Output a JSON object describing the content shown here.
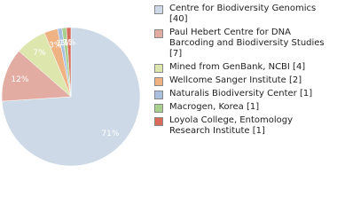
{
  "chart_data": {
    "type": "pie",
    "labels": [
      "Centre for Biodiversity Genomics [40]",
      "Paul Hebert Centre for DNA Barcoding and Biodiversity Studies [7]",
      "Mined from GenBank, NCBI [4]",
      "Wellcome Sanger Institute [2]",
      "Naturalis Biodiversity Center [1]",
      "Macrogen, Korea [1]",
      "Loyola College, Entomology Research Institute [1]"
    ],
    "values": [
      71,
      12,
      7,
      3,
      1,
      1,
      1
    ],
    "value_labels": [
      "71%",
      "12%",
      "7%",
      "3%",
      "1%",
      "1%",
      "1%"
    ],
    "colors": [
      "#cdd9e6",
      "#e2aca3",
      "#dde6ad",
      "#efb282",
      "#a8bfe0",
      "#a8cf8d",
      "#d96b5b"
    ]
  }
}
